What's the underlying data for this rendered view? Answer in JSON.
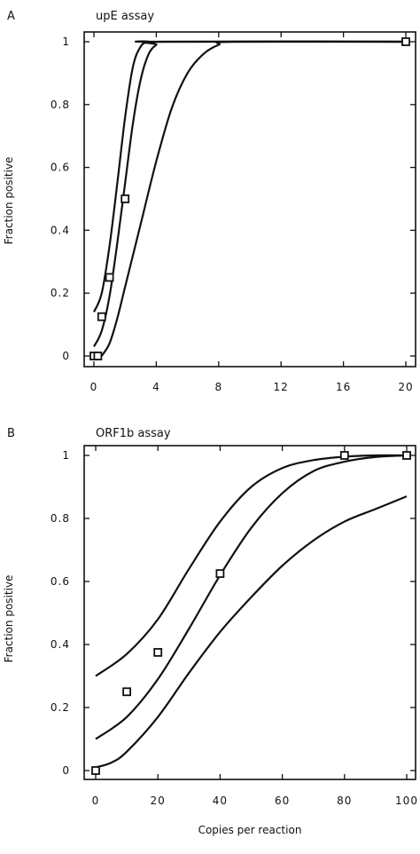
{
  "chart_data": [
    {
      "type": "line",
      "panel_label": "A",
      "title": "upE assay",
      "ylabel": "Fraction positive",
      "xlabel": "",
      "xlim": [
        0,
        20
      ],
      "ylim": [
        0,
        1
      ],
      "xticks": [
        0,
        4,
        8,
        12,
        16,
        20
      ],
      "xtick_labels": [
        "0",
        "4",
        "8",
        "12",
        "16",
        "20"
      ],
      "yticks": [
        0,
        0.2,
        0.4,
        0.6,
        0.8,
        1
      ],
      "ytick_labels": [
        "0",
        "0.2",
        "0.4",
        "0.6",
        "0.8",
        "1"
      ],
      "grid": false,
      "points": [
        {
          "x": 0,
          "y": 0
        },
        {
          "x": 0.25,
          "y": 0
        },
        {
          "x": 0.5,
          "y": 0.125
        },
        {
          "x": 1,
          "y": 0.25
        },
        {
          "x": 2,
          "y": 0.5
        },
        {
          "x": 20,
          "y": 1
        }
      ],
      "series": [
        {
          "values": [
            [
              0,
              0.14
            ],
            [
              0.5,
              0.2
            ],
            [
              1,
              0.35
            ],
            [
              1.5,
              0.55
            ],
            [
              2,
              0.76
            ],
            [
              2.5,
              0.92
            ],
            [
              3,
              0.985
            ],
            [
              3.5,
              1
            ],
            [
              4,
              1
            ],
            [
              20,
              1
            ]
          ]
        },
        {
          "values": [
            [
              0,
              0.03
            ],
            [
              0.5,
              0.08
            ],
            [
              1,
              0.19
            ],
            [
              1.5,
              0.36
            ],
            [
              2,
              0.55
            ],
            [
              2.5,
              0.74
            ],
            [
              3,
              0.88
            ],
            [
              3.5,
              0.96
            ],
            [
              4,
              0.99
            ],
            [
              4.5,
              1
            ],
            [
              20,
              1
            ]
          ]
        },
        {
          "values": [
            [
              0.5,
              0
            ],
            [
              1,
              0.04
            ],
            [
              1.5,
              0.12
            ],
            [
              2,
              0.22
            ],
            [
              3,
              0.42
            ],
            [
              4,
              0.62
            ],
            [
              5,
              0.79
            ],
            [
              6,
              0.9
            ],
            [
              7,
              0.96
            ],
            [
              8,
              0.99
            ],
            [
              9,
              1
            ],
            [
              20,
              1
            ]
          ]
        }
      ]
    },
    {
      "type": "line",
      "panel_label": "B",
      "title": "ORF1b assay",
      "ylabel": "Fraction positive",
      "xlabel": "Copies per reaction",
      "xlim": [
        0,
        100
      ],
      "ylim": [
        0,
        1
      ],
      "xticks": [
        0,
        20,
        40,
        60,
        80,
        100
      ],
      "xtick_labels": [
        "0",
        "20",
        "40",
        "60",
        "80",
        "100"
      ],
      "yticks": [
        0,
        0.2,
        0.4,
        0.6,
        0.8,
        1
      ],
      "ytick_labels": [
        "0",
        "0.2",
        "0.4",
        "0.6",
        "0.8",
        "1"
      ],
      "grid": false,
      "points": [
        {
          "x": 0,
          "y": 0
        },
        {
          "x": 10,
          "y": 0.25
        },
        {
          "x": 20,
          "y": 0.375
        },
        {
          "x": 40,
          "y": 0.625
        },
        {
          "x": 80,
          "y": 1
        },
        {
          "x": 100,
          "y": 1
        }
      ],
      "series": [
        {
          "values": [
            [
              0,
              0.3
            ],
            [
              10,
              0.37
            ],
            [
              20,
              0.48
            ],
            [
              30,
              0.64
            ],
            [
              40,
              0.79
            ],
            [
              50,
              0.9
            ],
            [
              60,
              0.96
            ],
            [
              70,
              0.985
            ],
            [
              80,
              0.996
            ],
            [
              90,
              1
            ],
            [
              100,
              1
            ]
          ]
        },
        {
          "values": [
            [
              0,
              0.1
            ],
            [
              10,
              0.17
            ],
            [
              20,
              0.29
            ],
            [
              30,
              0.45
            ],
            [
              40,
              0.62
            ],
            [
              50,
              0.77
            ],
            [
              60,
              0.88
            ],
            [
              70,
              0.95
            ],
            [
              80,
              0.98
            ],
            [
              90,
              0.995
            ],
            [
              100,
              1
            ]
          ]
        },
        {
          "values": [
            [
              0,
              0.01
            ],
            [
              5,
              0.025
            ],
            [
              10,
              0.06
            ],
            [
              20,
              0.17
            ],
            [
              30,
              0.31
            ],
            [
              40,
              0.44
            ],
            [
              50,
              0.55
            ],
            [
              60,
              0.65
            ],
            [
              70,
              0.73
            ],
            [
              80,
              0.79
            ],
            [
              90,
              0.83
            ],
            [
              100,
              0.87
            ]
          ]
        }
      ]
    }
  ]
}
